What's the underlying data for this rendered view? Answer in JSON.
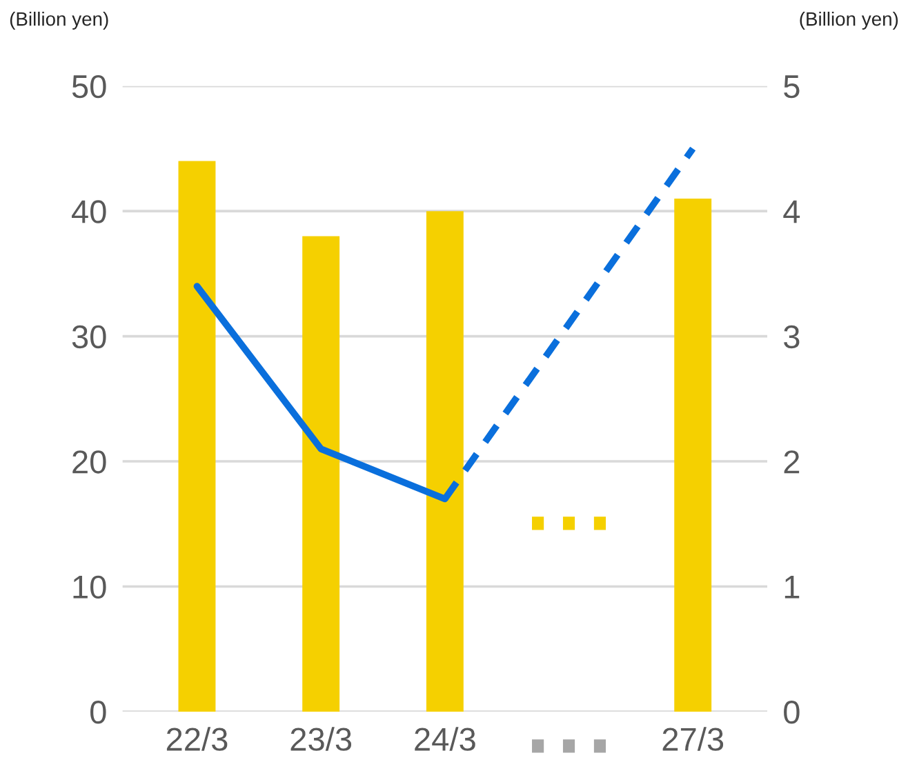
{
  "chart_data": {
    "type": "bar",
    "categories": [
      "22/3",
      "23/3",
      "24/3",
      null,
      "27/3"
    ],
    "ylabel": "(Billion yen)",
    "y2label": "(Billion yen)",
    "series": [
      {
        "color": "#f5d000",
        "values": [
          44,
          38,
          40,
          null,
          41
        ]
      },
      {
        "type": "line",
        "axis": "y2",
        "color": "#0a6fdc",
        "line_style": "solid",
        "values": [
          3.4,
          2.1,
          1.7,
          null,
          null
        ]
      },
      {
        "type": "line",
        "axis": "y2",
        "color": "#0a6fdc",
        "line_style": "dashed",
        "values": [
          null,
          null,
          1.7,
          null,
          4.5
        ]
      }
    ],
    "ylim": [
      0,
      50
    ],
    "yticks": [
      0,
      10,
      20,
      30,
      40,
      50
    ],
    "y2lim": [
      0,
      5
    ],
    "y2ticks": [
      0,
      1,
      2,
      3,
      4,
      5
    ],
    "grid": "y",
    "legend": false
  }
}
